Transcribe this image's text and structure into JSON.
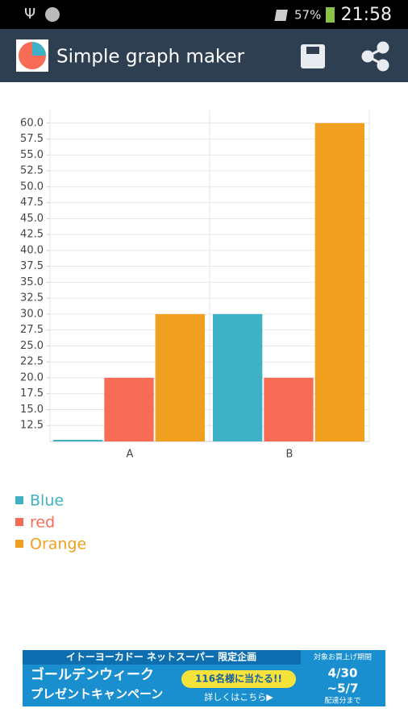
{
  "status_bar": {
    "battery": "57%",
    "time": "21:58"
  },
  "app_bar": {
    "title": "Simple graph maker"
  },
  "chart_data": {
    "type": "bar",
    "categories": [
      "A",
      "B"
    ],
    "series": [
      {
        "name": "Blue",
        "color": "#3fb1c6",
        "values": [
          10,
          30
        ]
      },
      {
        "name": "red",
        "color": "#f86b57",
        "values": [
          20,
          20
        ]
      },
      {
        "name": "Orange",
        "color": "#f0a01e",
        "values": [
          30,
          60
        ]
      }
    ],
    "ylim": [
      10,
      62
    ],
    "yticks": [
      12.5,
      {
        "value": 15,
        "label": "15.0"
      },
      17.5,
      {
        "value": 20,
        "label": "20.0"
      },
      22.5,
      {
        "value": 25,
        "label": "25.0"
      },
      27.5,
      {
        "value": 30,
        "label": "30.0"
      },
      32.5,
      {
        "value": 35,
        "label": "35.0"
      },
      37.5,
      {
        "value": 40,
        "label": "40.0"
      },
      42.5,
      {
        "value": 45,
        "label": "45.0"
      },
      47.5,
      {
        "value": 50,
        "label": "50.0"
      },
      52.5,
      {
        "value": 55,
        "label": "55.0"
      },
      57.5,
      {
        "value": 60,
        "label": "60.0"
      }
    ],
    "grid": true,
    "legend": "bottom"
  },
  "ad": {
    "headline": "イトーヨーカドー ネットスーパー 限定企画",
    "line1": "ゴールデンウィーク",
    "line2": "プレゼントキャンペーン",
    "prize": "116名様に当たる!!",
    "more": "詳しくはこちら▶",
    "period_label": "対象お買上げ期間",
    "start": "4/30",
    "end": "~5/7",
    "note": "配達分まで"
  }
}
